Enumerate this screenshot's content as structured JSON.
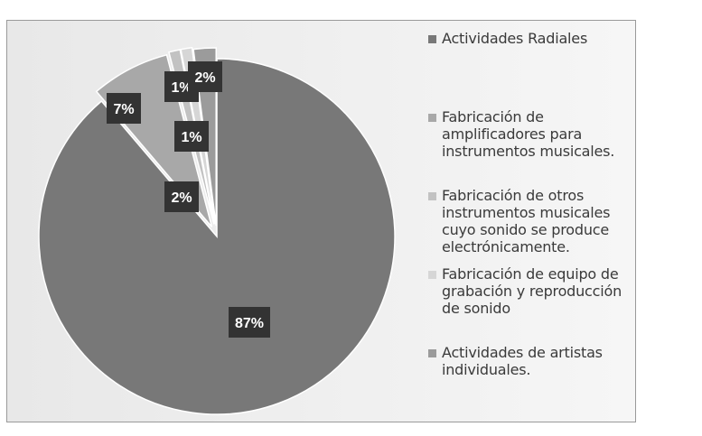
{
  "chart_data": {
    "type": "pie",
    "title": "",
    "series": [
      {
        "label": "Actividades Radiales",
        "value": 87,
        "display": "87%",
        "color": "#787878"
      },
      {
        "label": "Fabricación de amplificadores para instrumentos musicales.",
        "value": 7,
        "display": "7%",
        "color": "#a8a8a8"
      },
      {
        "label": "Fabricación de otros instrumentos musicales cuyo sonido se produce electrónicamente.",
        "value": 1,
        "display": "1%",
        "color": "#c2c2c2"
      },
      {
        "label": "Fabricación de equipo de grabación y reproducción de sonido",
        "value": 1,
        "display": "1%",
        "color": "#d6d6d6"
      },
      {
        "label": "Actividades de artistas individuales.",
        "value": 2,
        "display": "2%",
        "color": "#9b9b9b"
      }
    ],
    "extra_labels": [
      "2%"
    ],
    "legend_position": "right"
  }
}
